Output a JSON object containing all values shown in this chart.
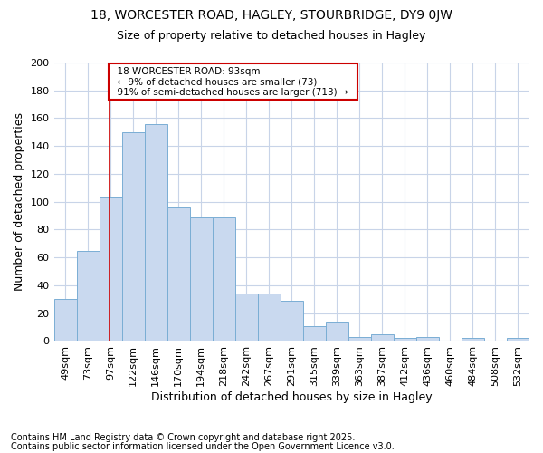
{
  "title1": "18, WORCESTER ROAD, HAGLEY, STOURBRIDGE, DY9 0JW",
  "title2": "Size of property relative to detached houses in Hagley",
  "xlabel": "Distribution of detached houses by size in Hagley",
  "ylabel": "Number of detached properties",
  "footer1": "Contains HM Land Registry data © Crown copyright and database right 2025.",
  "footer2": "Contains public sector information licensed under the Open Government Licence v3.0.",
  "bar_labels": [
    "49sqm",
    "73sqm",
    "97sqm",
    "122sqm",
    "146sqm",
    "170sqm",
    "194sqm",
    "218sqm",
    "242sqm",
    "267sqm",
    "291sqm",
    "315sqm",
    "339sqm",
    "363sqm",
    "387sqm",
    "412sqm",
    "436sqm",
    "460sqm",
    "484sqm",
    "508sqm",
    "532sqm"
  ],
  "bar_values": [
    30,
    65,
    104,
    150,
    156,
    96,
    89,
    89,
    34,
    34,
    29,
    11,
    14,
    3,
    5,
    2,
    3,
    0,
    2,
    0,
    2
  ],
  "bar_color": "#c9d9ef",
  "bar_edge_color": "#7aaed4",
  "background_color": "#ffffff",
  "plot_bg_color": "#ffffff",
  "grid_color": "#c8d4e8",
  "annotation_text": "  18 WORCESTER ROAD: 93sqm  \n  ← 9% of detached houses are smaller (73)  \n  91% of semi-detached houses are larger (713) →  ",
  "annotation_box_color": "#ffffff",
  "annotation_box_edge": "#cc0000",
  "vline_color": "#cc0000",
  "vline_x": 1.97,
  "ylim": [
    0,
    200
  ],
  "yticks": [
    0,
    20,
    40,
    60,
    80,
    100,
    120,
    140,
    160,
    180,
    200
  ],
  "title_fontsize": 10,
  "subtitle_fontsize": 9,
  "axis_label_fontsize": 9,
  "tick_fontsize": 8,
  "footer_fontsize": 7
}
